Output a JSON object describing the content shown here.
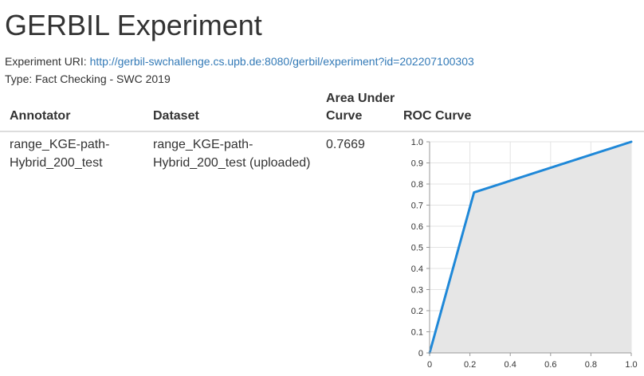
{
  "header": {
    "title": "GERBIL Experiment"
  },
  "meta": {
    "uri_label": "Experiment URI:",
    "uri_link": "http://gerbil-swchallenge.cs.upb.de:8080/gerbil/experiment?id=202207100303",
    "type_line": "Type: Fact Checking - SWC 2019"
  },
  "table": {
    "headers": {
      "annotator": "Annotator",
      "dataset": "Dataset",
      "auc_line1": "Area Under",
      "auc_line2": "Curve",
      "roc": "ROC Curve"
    },
    "row": {
      "annotator_line1": "range_KGE-path-",
      "annotator_line2": "Hybrid_200_test",
      "dataset_line1": "range_KGE-path-",
      "dataset_line2": "Hybrid_200_test (uploaded)",
      "auc": "0.7669"
    }
  },
  "chart_data": {
    "type": "area",
    "x": [
      0,
      0.22,
      1.0
    ],
    "y": [
      0,
      0.76,
      1.0
    ],
    "xlim": [
      0,
      1.0
    ],
    "ylim": [
      0,
      1.0
    ],
    "xticks": [
      "0",
      "0.2",
      "0.4",
      "0.6",
      "0.8",
      "1.0"
    ],
    "yticks": [
      "0",
      "0.1",
      "0.2",
      "0.3",
      "0.4",
      "0.5",
      "0.6",
      "0.7",
      "0.8",
      "0.9",
      "1.0"
    ],
    "grid": true,
    "line_color": "#1f88d8",
    "fill_color": "#e6e6e6"
  }
}
